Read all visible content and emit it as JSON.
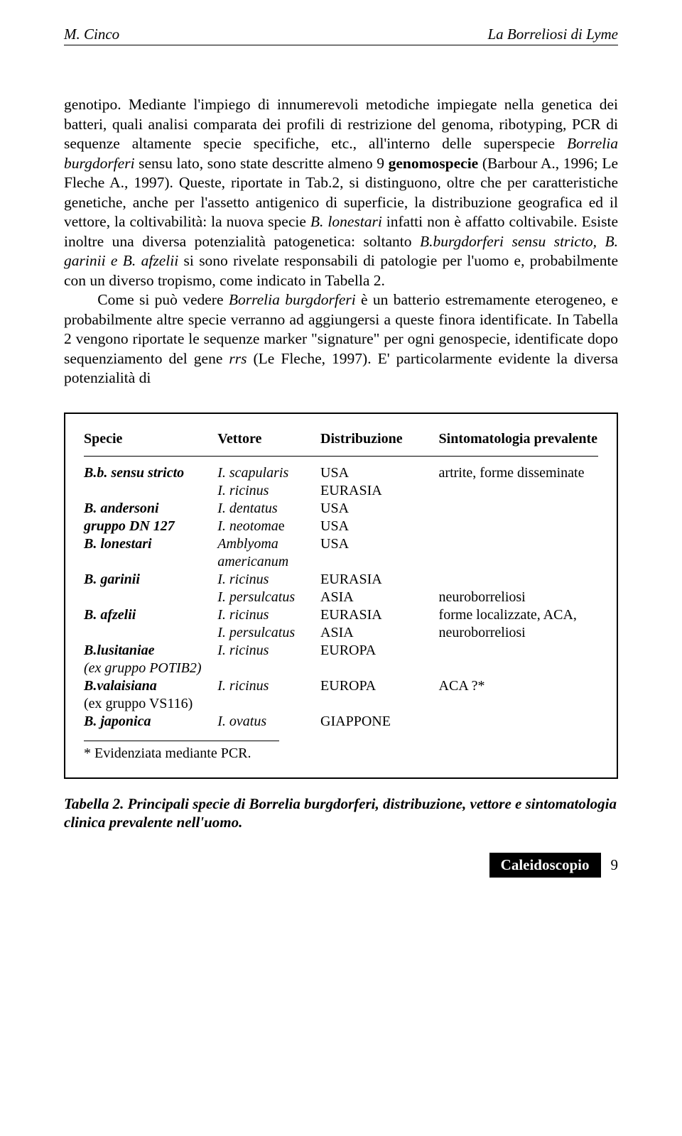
{
  "header": {
    "left": "M. Cinco",
    "right": "La Borreliosi di Lyme"
  },
  "para1_html": "genotipo. Mediante l'impiego di innumerevoli metodiche impiegate nella genetica dei batteri, quali analisi comparata dei profili di restrizione del genoma, ribotyping, PCR di sequenze altamente specie specifiche, etc., all'interno delle superspecie <span class=\"ital\">Borrelia burgdorferi</span> sensu lato, sono state descritte almeno 9 <span class=\"bold\">genomospecie</span> (Barbour A., 1996; Le Fleche A., 1997). Queste, riportate in Tab.2, si distinguono, oltre che per caratteristiche genetiche, anche per l'assetto antigenico di superficie, la distribuzione geografica ed il vettore, la coltivabilità: la nuova specie <span class=\"ital\">B. lonestari</span> infatti non è affatto coltivabile. Esiste inoltre una diversa potenzialità patogenetica: soltanto <span class=\"ital\">B.burgdorferi sensu stricto, B. garinii e B. afzelii</span> si sono rivelate responsabili di patologie per l'uomo e, probabilmente con un diverso tropismo, come indicato in Tabella 2.",
  "para2_html": "Come si può vedere <span class=\"ital\">Borrelia burgdorferi</span> è un batterio estremamente eterogeneo, e probabilmente altre specie verranno ad aggiungersi a queste finora identificate. In Tabella 2 vengono riportate le sequenze marker \"signature\" per ogni genospecie, identificate dopo sequenziamento del gene <span class=\"ital\">rrs</span> (Le Fleche, 1997). E' particolarmente evidente la diversa potenzialità di",
  "table": {
    "columns": [
      "Specie",
      "Vettore",
      "Distribuzione",
      "Sintomatologia prevalente"
    ],
    "rows": [
      {
        "specie": "B.b. sensu stricto",
        "specie_style": "bi",
        "vettore": "I. scapularis",
        "vettore_style": "i",
        "distrib": "USA",
        "sintomo": "artrite, forme disseminate"
      },
      {
        "specie": "",
        "specie_style": "",
        "vettore": "I. ricinus",
        "vettore_style": "i",
        "distrib": "EURASIA",
        "sintomo": ""
      },
      {
        "specie": "B. andersoni",
        "specie_style": "bi",
        "vettore": "I. dentatus",
        "vettore_style": "i",
        "distrib": "USA",
        "sintomo": ""
      },
      {
        "specie": "gruppo DN 127",
        "specie_style": "bi",
        "vettore": "I. neotomae",
        "vettore_style": "i-partial",
        "distrib": "USA",
        "sintomo": ""
      },
      {
        "specie": "B. lonestari",
        "specie_style": "bi",
        "vettore": "Amblyoma",
        "vettore_style": "i",
        "distrib": "USA",
        "sintomo": ""
      },
      {
        "specie": "",
        "specie_style": "",
        "vettore": "americanum",
        "vettore_style": "i",
        "distrib": "",
        "sintomo": ""
      },
      {
        "specie": "B. garinii",
        "specie_style": "bi",
        "vettore": "I. ricinus",
        "vettore_style": "i",
        "distrib": "EURASIA",
        "sintomo": ""
      },
      {
        "specie": "",
        "specie_style": "",
        "vettore": "I. persulcatus",
        "vettore_style": "i",
        "distrib": "ASIA",
        "sintomo": "neuroborreliosi"
      },
      {
        "specie": "B. afzelii",
        "specie_style": "bi",
        "vettore": "I. ricinus",
        "vettore_style": "i",
        "distrib": "EURASIA",
        "sintomo": "forme localizzate, ACA,"
      },
      {
        "specie": "",
        "specie_style": "",
        "vettore": "I. persulcatus",
        "vettore_style": "i",
        "distrib": "ASIA",
        "sintomo": "neuroborreliosi"
      },
      {
        "specie": "B.lusitaniae",
        "specie_style": "bi",
        "vettore": "I. ricinus",
        "vettore_style": "i",
        "distrib": "EUROPA",
        "sintomo": ""
      },
      {
        "specie": "(ex gruppo POTIB2)",
        "specie_style": "i",
        "vettore": "",
        "vettore_style": "",
        "distrib": "",
        "sintomo": ""
      },
      {
        "specie": "B.valaisiana",
        "specie_style": "bi",
        "vettore": "I. ricinus",
        "vettore_style": "i",
        "distrib": "EUROPA",
        "sintomo": "ACA ?*"
      },
      {
        "specie": "(ex gruppo VS116)",
        "specie_style": "",
        "vettore": "",
        "vettore_style": "",
        "distrib": "",
        "sintomo": ""
      },
      {
        "specie": "B. japonica",
        "specie_style": "bi",
        "vettore": "I. ovatus",
        "vettore_style": "i",
        "distrib": "GIAPPONE",
        "sintomo": ""
      }
    ],
    "footnote": "* Evidenziata mediante PCR."
  },
  "caption": "Tabella 2. Principali specie di Borrelia burgdorferi, distribuzione, vettore e sintomatologia clinica prevalente nell'uomo.",
  "footer": {
    "label": "Caleidoscopio",
    "page": "9"
  }
}
